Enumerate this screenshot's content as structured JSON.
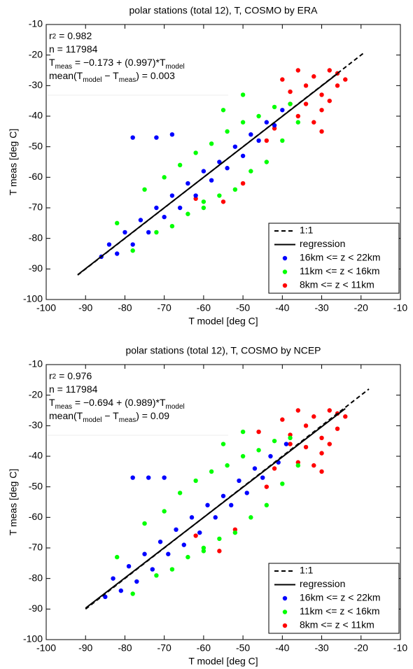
{
  "chart_data": [
    {
      "type": "scatter",
      "title": "polar stations (total 12), T, COSMO by ERA",
      "xlabel": "T model [deg C]",
      "ylabel": "T meas [deg C]",
      "xlim": [
        -100,
        -10
      ],
      "ylim": [
        -100,
        -10
      ],
      "xticks": [
        -100,
        -90,
        -80,
        -70,
        -60,
        -50,
        -40,
        -30,
        -20,
        -10
      ],
      "yticks": [
        -100,
        -90,
        -80,
        -70,
        -60,
        -50,
        -40,
        -30,
        -20,
        -10
      ],
      "legend": "lower right",
      "annotations": [
        [
          "r",
          "2",
          " = 0.982"
        ],
        [
          "n = 117984"
        ],
        [
          "T",
          "meas",
          " = −0.173 + (0.997)*T",
          "model"
        ],
        [
          "mean(T",
          "model",
          " − T",
          "meas",
          ") = 0.003"
        ]
      ],
      "one_to_one": {
        "name": "1:1",
        "x": [
          -92,
          -19
        ],
        "y": [
          -92,
          -19
        ]
      },
      "regression": {
        "name": "regression",
        "x": [
          -92,
          -26
        ],
        "y": [
          -91.9,
          -26.1
        ]
      },
      "series": [
        {
          "name": "16km <= z < 22km",
          "color": "#0000ff",
          "x": [
            -86,
            -84,
            -82,
            -80,
            -78,
            -76,
            -74,
            -72,
            -70,
            -68,
            -66,
            -64,
            -62,
            -60,
            -58,
            -56,
            -54,
            -52,
            -50,
            -48,
            -46,
            -44,
            -42,
            -40,
            -78,
            -72,
            -68
          ],
          "y": [
            -86,
            -82,
            -85,
            -78,
            -82,
            -74,
            -78,
            -70,
            -73,
            -66,
            -70,
            -62,
            -66,
            -58,
            -61,
            -55,
            -57,
            -50,
            -53,
            -46,
            -48,
            -42,
            -43,
            -38,
            -47,
            -47,
            -46
          ]
        },
        {
          "name": "11km <= z < 16km",
          "color": "#00ff00",
          "x": [
            -82,
            -78,
            -75,
            -72,
            -70,
            -68,
            -66,
            -64,
            -62,
            -60,
            -58,
            -56,
            -54,
            -52,
            -50,
            -48,
            -46,
            -44,
            -42,
            -40,
            -38,
            -36,
            -55,
            -50,
            -60
          ],
          "y": [
            -75,
            -84,
            -64,
            -78,
            -60,
            -76,
            -56,
            -72,
            -52,
            -70,
            -49,
            -66,
            -45,
            -64,
            -42,
            -58,
            -40,
            -55,
            -37,
            -48,
            -36,
            -42,
            -38,
            -33,
            -68
          ]
        },
        {
          "name": "8km <= z < 11km",
          "color": "#ff0000",
          "x": [
            -40,
            -38,
            -36,
            -34,
            -32,
            -30,
            -28,
            -26,
            -36,
            -32,
            -30,
            -28,
            -34,
            -38,
            -26,
            -42,
            -44,
            -55,
            -50,
            -62,
            -30,
            -24
          ],
          "y": [
            -28,
            -32,
            -25,
            -36,
            -27,
            -33,
            -25,
            -30,
            -40,
            -42,
            -38,
            -35,
            -30,
            -36,
            -26,
            -44,
            -48,
            -68,
            -62,
            -67,
            -45,
            -28
          ]
        }
      ]
    },
    {
      "type": "scatter",
      "title": "polar stations (total 12), T, COSMO by NCEP",
      "xlabel": "T model [deg C]",
      "ylabel": "T meas [deg C]",
      "xlim": [
        -100,
        -10
      ],
      "ylim": [
        -100,
        -10
      ],
      "xticks": [
        -100,
        -90,
        -80,
        -70,
        -60,
        -50,
        -40,
        -30,
        -20,
        -10
      ],
      "yticks": [
        -100,
        -90,
        -80,
        -70,
        -60,
        -50,
        -40,
        -30,
        -20,
        -10
      ],
      "legend": "lower right",
      "annotations": [
        [
          "r",
          "2",
          " = 0.976"
        ],
        [
          "n = 117984"
        ],
        [
          "T",
          "meas",
          " = −0.694 + (0.989)*T",
          "model"
        ],
        [
          "mean(T",
          "model",
          " − T",
          "meas",
          ") = 0.09"
        ]
      ],
      "one_to_one": {
        "name": "1:1",
        "x": [
          -90,
          -18
        ],
        "y": [
          -90,
          -18
        ]
      },
      "regression": {
        "name": "regression",
        "x": [
          -90,
          -24
        ],
        "y": [
          -89.7,
          -24.4
        ]
      },
      "series": [
        {
          "name": "16km <= z < 22km",
          "color": "#0000ff",
          "x": [
            -85,
            -83,
            -81,
            -79,
            -77,
            -75,
            -73,
            -71,
            -69,
            -67,
            -65,
            -63,
            -61,
            -59,
            -57,
            -55,
            -53,
            -51,
            -49,
            -47,
            -45,
            -43,
            -41,
            -39,
            -78,
            -74,
            -70
          ],
          "y": [
            -86,
            -80,
            -84,
            -76,
            -81,
            -72,
            -77,
            -68,
            -72,
            -64,
            -69,
            -60,
            -65,
            -56,
            -60,
            -53,
            -56,
            -48,
            -52,
            -44,
            -47,
            -40,
            -42,
            -36,
            -47,
            -47,
            -47
          ]
        },
        {
          "name": "11km <= z < 16km",
          "color": "#00ff00",
          "x": [
            -82,
            -78,
            -75,
            -72,
            -70,
            -68,
            -66,
            -64,
            -62,
            -60,
            -58,
            -56,
            -54,
            -52,
            -50,
            -48,
            -46,
            -44,
            -42,
            -40,
            -38,
            -36,
            -55,
            -50,
            -60
          ],
          "y": [
            -73,
            -85,
            -62,
            -79,
            -58,
            -77,
            -52,
            -73,
            -48,
            -71,
            -45,
            -67,
            -43,
            -65,
            -40,
            -60,
            -38,
            -56,
            -35,
            -49,
            -34,
            -43,
            -36,
            -32,
            -70
          ]
        },
        {
          "name": "8km <= z < 11km",
          "color": "#ff0000",
          "x": [
            -40,
            -38,
            -36,
            -34,
            -32,
            -30,
            -28,
            -26,
            -36,
            -32,
            -30,
            -28,
            -34,
            -38,
            -26,
            -42,
            -44,
            -56,
            -52,
            -62,
            -30,
            -24,
            -46
          ],
          "y": [
            -28,
            -33,
            -25,
            -37,
            -27,
            -34,
            -25,
            -31,
            -42,
            -43,
            -39,
            -36,
            -30,
            -36,
            -26,
            -44,
            -50,
            -71,
            -64,
            -66,
            -45,
            -27,
            -32
          ]
        }
      ]
    }
  ]
}
